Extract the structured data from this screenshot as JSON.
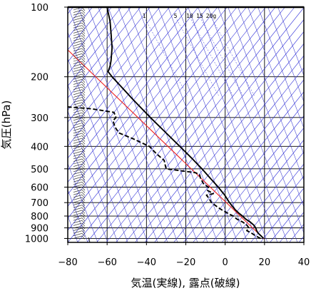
{
  "chart_data": {
    "type": "line",
    "title": "",
    "xlabel": "気温(実線), 露点(破線)",
    "ylabel": "気圧(hPa)",
    "xlim": [
      -80,
      40
    ],
    "ylim": [
      1040,
      100
    ],
    "y_scale": "log",
    "x_ticks": [
      "−80",
      "−60",
      "−40",
      "−20",
      "0",
      "20",
      "40"
    ],
    "x_tick_values": [
      -80,
      -60,
      -40,
      -20,
      0,
      20,
      40
    ],
    "y_ticks": [
      "100",
      "200",
      "300",
      "400",
      "500",
      "600",
      "700",
      "800",
      "900",
      "1000"
    ],
    "y_tick_values": [
      100,
      200,
      300,
      400,
      500,
      600,
      700,
      800,
      900,
      1000
    ],
    "mixing_ratio_labels": [
      "1",
      "5",
      "10",
      "15",
      "20g"
    ],
    "grid": true,
    "colors": {
      "temperature": "#000000",
      "dewpoint": "#000000",
      "isotherm_skewed": "#2a2ad8",
      "dry_adiabat": "#3b3bd0",
      "reference": "#ee2222",
      "grid": "#000000"
    },
    "series": [
      {
        "style": "solid",
        "points": [
          [
            1000,
            19.5
          ],
          [
            980,
            18.5
          ],
          [
            950,
            16.8
          ],
          [
            925,
            16.0
          ],
          [
            900,
            15.5
          ],
          [
            875,
            14.5
          ],
          [
            850,
            12.8
          ],
          [
            825,
            10.5
          ],
          [
            800,
            8.8
          ],
          [
            775,
            6.8
          ],
          [
            750,
            5.0
          ],
          [
            700,
            2.2
          ],
          [
            650,
            -0.2
          ],
          [
            600,
            -3.5
          ],
          [
            550,
            -7.5
          ],
          [
            500,
            -11.8
          ],
          [
            450,
            -17.0
          ],
          [
            400,
            -23.0
          ],
          [
            350,
            -30.0
          ],
          [
            300,
            -38.0
          ],
          [
            250,
            -47.0
          ],
          [
            220,
            -53.0
          ],
          [
            200,
            -57.5
          ],
          [
            190,
            -59.5
          ],
          [
            180,
            -58.5
          ],
          [
            170,
            -58.0
          ],
          [
            150,
            -57.5
          ],
          [
            130,
            -58.0
          ],
          [
            115,
            -58.5
          ],
          [
            105,
            -59.5
          ],
          [
            100,
            -60.0
          ]
        ]
      },
      {
        "style": "dashed",
        "points": [
          [
            1000,
            18.0
          ],
          [
            975,
            15.5
          ],
          [
            950,
            13.5
          ],
          [
            925,
            11.0
          ],
          [
            900,
            12.0
          ],
          [
            875,
            11.0
          ],
          [
            850,
            9.0
          ],
          [
            825,
            6.0
          ],
          [
            800,
            4.0
          ],
          [
            775,
            1.0
          ],
          [
            750,
            -2.0
          ],
          [
            725,
            -4.5
          ],
          [
            700,
            -7.0
          ],
          [
            675,
            -8.0
          ],
          [
            650,
            -9.5
          ],
          [
            640,
            -6.0
          ],
          [
            620,
            -9.0
          ],
          [
            600,
            -8.5
          ],
          [
            580,
            -11.0
          ],
          [
            550,
            -12.5
          ],
          [
            530,
            -13.0
          ],
          [
            520,
            -15.0
          ],
          [
            500,
            -30.0
          ],
          [
            480,
            -30.5
          ],
          [
            460,
            -31.0
          ],
          [
            430,
            -35.0
          ],
          [
            400,
            -38.5
          ],
          [
            370,
            -47.0
          ],
          [
            350,
            -54.0
          ],
          [
            330,
            -56.0
          ],
          [
            310,
            -57.0
          ],
          [
            300,
            -55.5
          ],
          [
            285,
            -56.5
          ],
          [
            275,
            -68.0
          ],
          [
            270,
            -80.0
          ]
        ]
      }
    ],
    "wind_barbs": "left margin column, full height"
  }
}
